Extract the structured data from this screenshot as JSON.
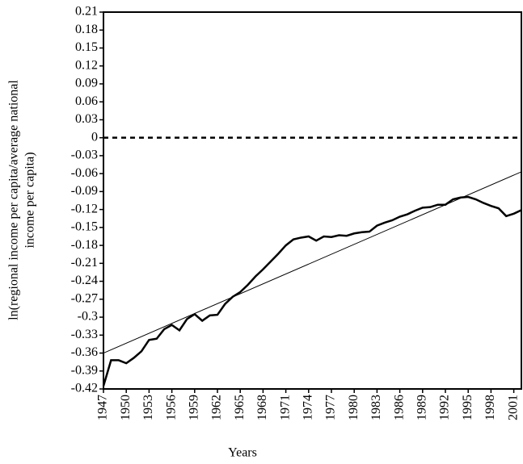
{
  "chart_data": {
    "type": "line",
    "xlabel": "Years",
    "ylabel": [
      "ln(regional income per capita/average national",
      "income per capita)"
    ],
    "x": [
      1947,
      1948,
      1949,
      1950,
      1951,
      1952,
      1953,
      1954,
      1955,
      1956,
      1957,
      1958,
      1959,
      1960,
      1961,
      1962,
      1963,
      1964,
      1965,
      1966,
      1967,
      1968,
      1969,
      1970,
      1971,
      1972,
      1973,
      1974,
      1975,
      1976,
      1977,
      1978,
      1979,
      1980,
      1981,
      1982,
      1983,
      1984,
      1985,
      1986,
      1987,
      1988,
      1989,
      1990,
      1991,
      1992,
      1993,
      1994,
      1995,
      1996,
      1997,
      1998,
      1999,
      2000,
      2001,
      2002
    ],
    "series": [
      {
        "color": "#000000",
        "values": [
          -0.415,
          -0.372,
          -0.372,
          -0.377,
          -0.368,
          -0.357,
          -0.338,
          -0.336,
          -0.32,
          -0.313,
          -0.322,
          -0.303,
          -0.295,
          -0.306,
          -0.297,
          -0.296,
          -0.278,
          -0.266,
          -0.258,
          -0.246,
          -0.232,
          -0.22,
          -0.207,
          -0.194,
          -0.18,
          -0.17,
          -0.167,
          -0.165,
          -0.172,
          -0.165,
          -0.166,
          -0.163,
          -0.164,
          -0.16,
          -0.158,
          -0.157,
          -0.147,
          -0.142,
          -0.138,
          -0.132,
          -0.128,
          -0.122,
          -0.117,
          -0.116,
          -0.112,
          -0.112,
          -0.103,
          -0.1,
          -0.099,
          -0.103,
          -0.109,
          -0.114,
          -0.118,
          -0.131,
          -0.127,
          -0.121
        ]
      },
      {
        "color": "#000000",
        "x": [
          1947,
          2002
        ],
        "values": [
          -0.36,
          -0.057
        ]
      }
    ],
    "reference_line": 0,
    "xlim": [
      1947,
      2002
    ],
    "ylim": [
      -0.42,
      0.21
    ],
    "xticks": [
      1947,
      1950,
      1953,
      1956,
      1959,
      1962,
      1965,
      1968,
      1971,
      1974,
      1977,
      1980,
      1983,
      1986,
      1989,
      1992,
      1995,
      1998,
      2001
    ],
    "yticks": [
      0.21,
      0.18,
      0.15,
      0.12,
      0.09,
      0.06,
      0.03,
      0,
      -0.03,
      -0.06,
      -0.09,
      -0.12,
      -0.15,
      -0.18,
      -0.21,
      -0.24,
      -0.27,
      -0.3,
      -0.33,
      -0.36,
      -0.39,
      -0.42
    ]
  }
}
